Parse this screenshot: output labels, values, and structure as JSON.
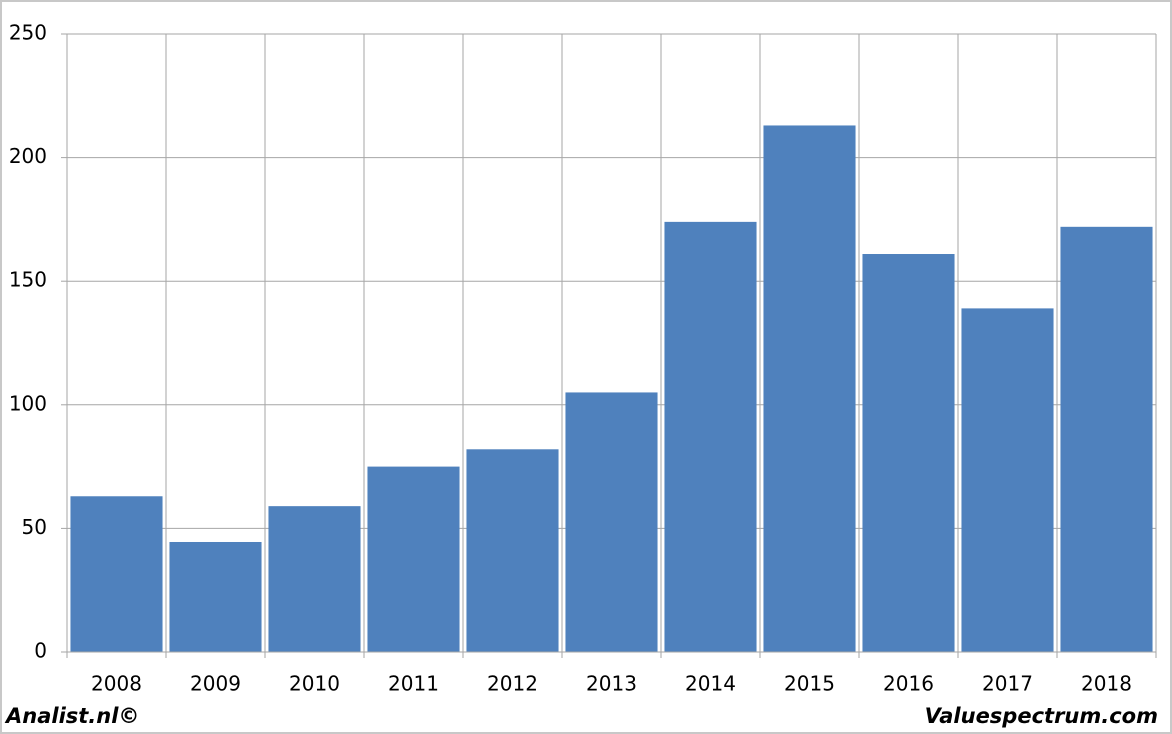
{
  "chart_data": {
    "type": "bar",
    "categories": [
      "2008",
      "2009",
      "2010",
      "2011",
      "2012",
      "2013",
      "2014",
      "2015",
      "2016",
      "2017",
      "2018"
    ],
    "values": [
      63,
      44.5,
      59,
      75,
      82,
      105,
      174,
      213,
      161,
      139,
      172
    ],
    "color": "#4f81bd",
    "ylim": [
      0,
      250
    ],
    "yticks": [
      0,
      50,
      100,
      150,
      200,
      250
    ],
    "grid": true,
    "footer": {
      "left": "Analist.nl©",
      "right": "Valuespectrum.com"
    }
  }
}
